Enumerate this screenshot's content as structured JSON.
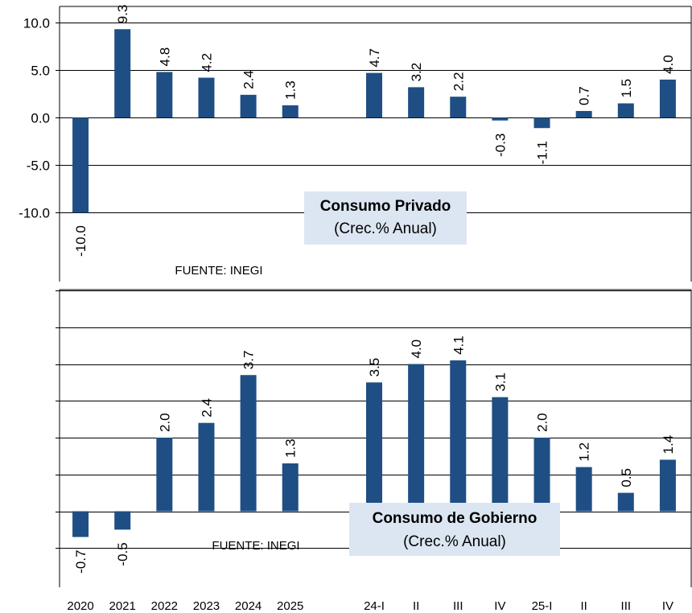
{
  "colors": {
    "bar": "#1F4E84",
    "grid": "#000000",
    "box_fill": "#DCE6F2"
  },
  "shared_x_categories": [
    "2020",
    "2021",
    "2022",
    "2023",
    "2024",
    "2025",
    "",
    "24-I",
    "II",
    "III",
    "IV",
    "25-I",
    "II",
    "III",
    "IV"
  ],
  "chart_data": [
    {
      "type": "bar",
      "title": "Consumo Privado",
      "subtitle": "(Crec.% Anual)",
      "source": "FUENTE: INEGI",
      "categories": [
        "2020",
        "2021",
        "2022",
        "2023",
        "2024",
        "2025",
        "",
        "24-I",
        "II",
        "III",
        "IV",
        "25-I",
        "II",
        "III",
        "IV"
      ],
      "values": [
        -10.0,
        9.3,
        4.8,
        4.2,
        2.4,
        1.3,
        null,
        4.7,
        3.2,
        2.2,
        -0.3,
        -1.1,
        0.7,
        1.5,
        4.0
      ],
      "value_labels": [
        "-10.0",
        "9.3",
        "4.8",
        "4.2",
        "2.4",
        "1.3",
        "",
        "4.7",
        "3.2",
        "2.2",
        "-0.3",
        "-1.1",
        "0.7",
        "1.5",
        "4.0"
      ],
      "y_ticks": [
        10.0,
        5.0,
        0.0,
        -5.0,
        -10.0
      ],
      "y_tick_labels": [
        "10.0",
        "5.0",
        "0.0",
        "-5.0",
        "-10.0"
      ],
      "ylim": [
        -12.5,
        10.0
      ],
      "grid": true
    },
    {
      "type": "bar",
      "title": "Consumo de Gobierno",
      "subtitle": "(Crec.% Anual)",
      "source": "FUENTE: INEGI",
      "categories": [
        "2020",
        "2021",
        "2022",
        "2023",
        "2024",
        "2025",
        "",
        "24-I",
        "II",
        "III",
        "IV",
        "25-I",
        "II",
        "III",
        "IV"
      ],
      "values": [
        -0.7,
        -0.5,
        2.0,
        2.4,
        3.7,
        1.3,
        null,
        3.5,
        4.0,
        4.1,
        3.1,
        2.0,
        1.2,
        0.5,
        1.4
      ],
      "value_labels": [
        "-0.7",
        "-0.5",
        "2.0",
        "2.4",
        "3.7",
        "1.3",
        "",
        "3.5",
        "4.0",
        "4.1",
        "3.1",
        "2.0",
        "1.2",
        "0.5",
        "1.4"
      ],
      "y_ticks": [
        6.0,
        5.0,
        4.0,
        3.0,
        2.0,
        1.0,
        0.0,
        -1.0
      ],
      "y_tick_labels": [],
      "ylim": [
        -2.0,
        6.0
      ],
      "grid": true
    }
  ]
}
